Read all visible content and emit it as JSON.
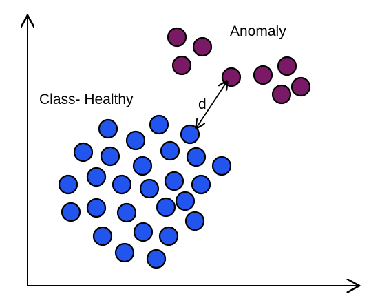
{
  "labels": {
    "healthy": "Class- Healthy",
    "anomaly": "Anomaly",
    "distance": "d"
  },
  "colors": {
    "healthy": "#2255ee",
    "anomaly": "#7a1a66",
    "outline": "#000000",
    "axis": "#000000",
    "background": "#ffffff"
  },
  "groups": {
    "healthy_count": 32,
    "anomaly_count": 8
  }
}
